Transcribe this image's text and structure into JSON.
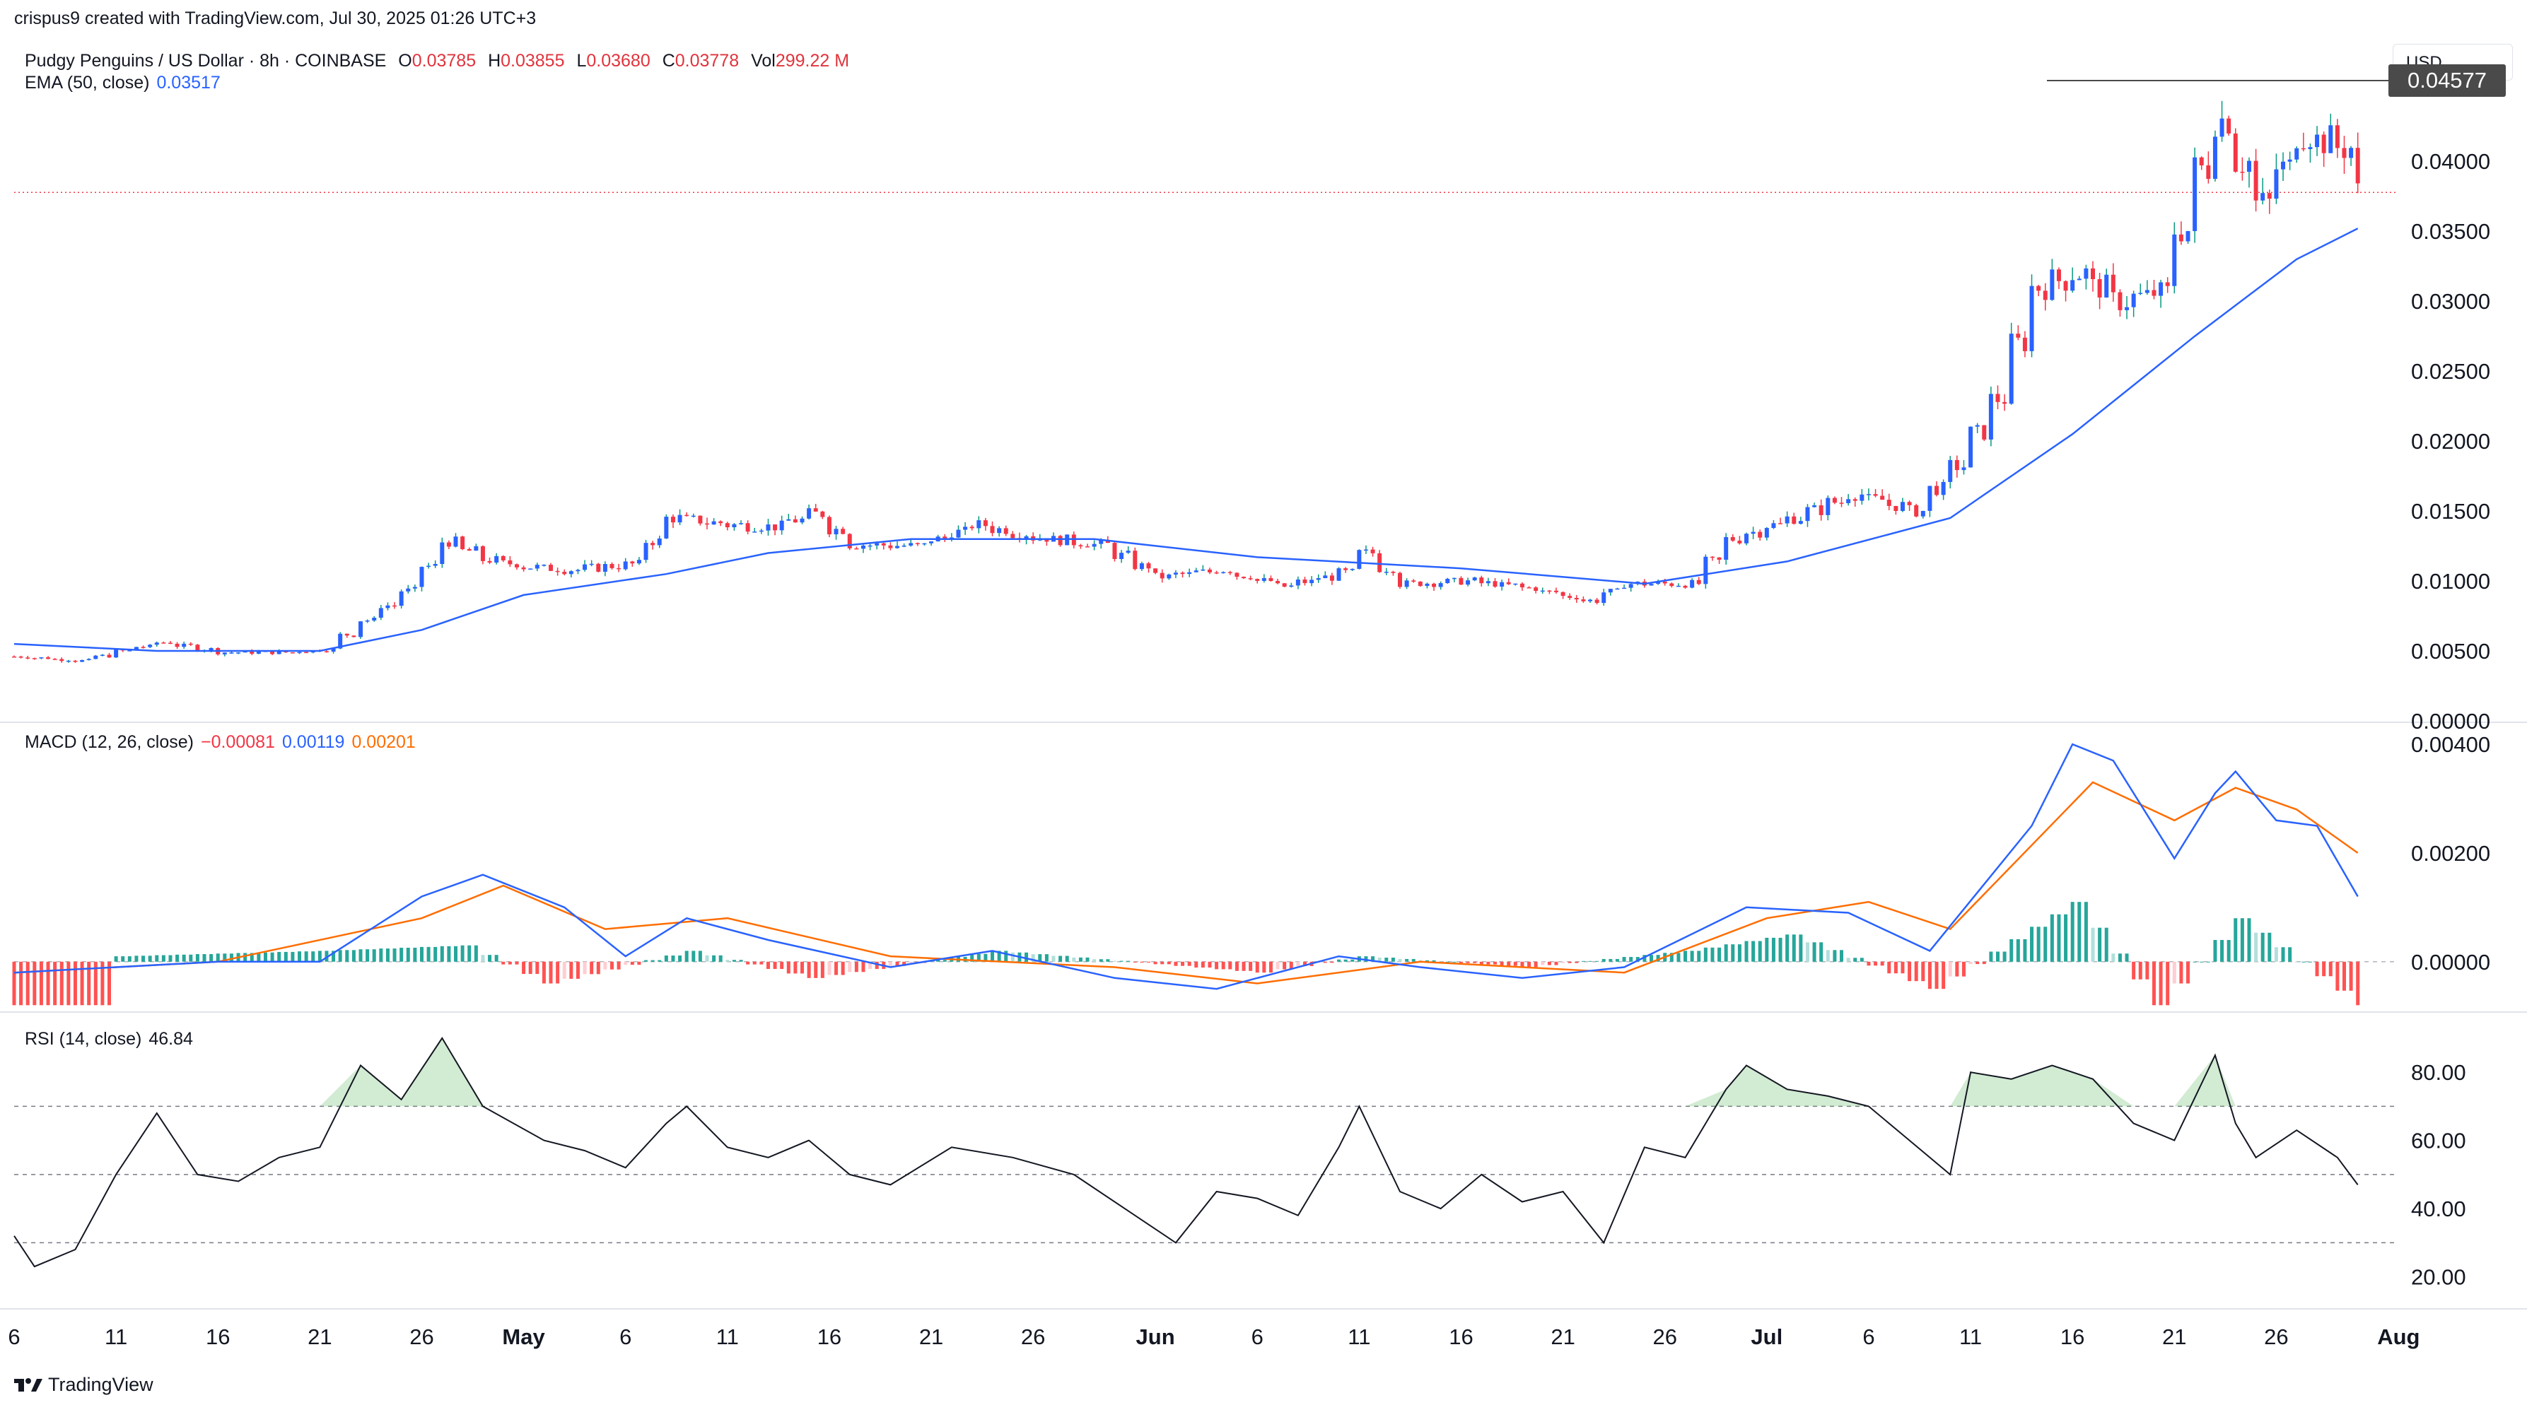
{
  "header": {
    "text": "crispus9 created with TradingView.com, Jul 30, 2025 01:26 UTC+3"
  },
  "symbol": {
    "name": "Pudgy Penguins / US Dollar · 8h · COINBASE",
    "open_key": "O",
    "open": "0.03785",
    "high_key": "H",
    "high": "0.03855",
    "low_key": "L",
    "low": "0.03680",
    "close_key": "C",
    "close": "0.03778",
    "vol_key": "Vol",
    "vol": "299.22 M"
  },
  "ema": {
    "label": "EMA (50, close)",
    "value": "0.03517"
  },
  "macd": {
    "label": "MACD (12, 26, close)",
    "hist": "−0.00081",
    "macd": "0.00119",
    "signal": "0.00201"
  },
  "rsi": {
    "label": "RSI (14, close)",
    "value": "46.84"
  },
  "currency": "USD",
  "resistance_label": "0.04577",
  "footer": {
    "brand": "TradingView"
  },
  "colors": {
    "up": "#089981",
    "up_body": "#2962ff",
    "down": "#f23645",
    "ema": "#2962ff",
    "macd": "#2962ff",
    "signal": "#ff6d00",
    "rsi": "#131722"
  },
  "chart_data": [
    {
      "type": "candlestick",
      "title": "Pudgy Penguins / US Dollar · 8h · COINBASE",
      "y_ticks": [
        "0.04000",
        "0.03500",
        "0.03000",
        "0.02500",
        "0.02000",
        "0.01500",
        "0.01000",
        "0.00500",
        "0.00000"
      ],
      "ylim": [
        0,
        0.0485
      ],
      "x_ticks": [
        "6",
        "11",
        "16",
        "21",
        "26",
        "May",
        "6",
        "11",
        "16",
        "21",
        "26",
        "Jun",
        "6",
        "11",
        "16",
        "21",
        "26",
        "Jul",
        "6",
        "11",
        "16",
        "21",
        "26",
        "Aug"
      ],
      "close_path": [
        [
          "2025-04-06",
          0.0046
        ],
        [
          "2025-04-09",
          0.0043
        ],
        [
          "2025-04-11",
          0.005
        ],
        [
          "2025-04-13",
          0.0056
        ],
        [
          "2025-04-16",
          0.0049
        ],
        [
          "2025-04-19",
          0.0049
        ],
        [
          "2025-04-21",
          0.0051
        ],
        [
          "2025-04-23",
          0.0072
        ],
        [
          "2025-04-25",
          0.0093
        ],
        [
          "2025-04-27",
          0.0128
        ],
        [
          "2025-04-29",
          0.0115
        ],
        [
          "2025-05-01",
          0.011
        ],
        [
          "2025-05-03",
          0.0108
        ],
        [
          "2025-05-06",
          0.0112
        ],
        [
          "2025-05-08",
          0.0145
        ],
        [
          "2025-05-11",
          0.014
        ],
        [
          "2025-05-13",
          0.0139
        ],
        [
          "2025-05-15",
          0.0148
        ],
        [
          "2025-05-17",
          0.0126
        ],
        [
          "2025-05-20",
          0.0125
        ],
        [
          "2025-05-23",
          0.014
        ],
        [
          "2025-05-26",
          0.0131
        ],
        [
          "2025-05-29",
          0.0126
        ],
        [
          "2025-06-01",
          0.0103
        ],
        [
          "2025-06-04",
          0.0108
        ],
        [
          "2025-06-07",
          0.0096
        ],
        [
          "2025-06-10",
          0.0106
        ],
        [
          "2025-06-11",
          0.012
        ],
        [
          "2025-06-13",
          0.0098
        ],
        [
          "2025-06-16",
          0.01
        ],
        [
          "2025-06-19",
          0.0095
        ],
        [
          "2025-06-22",
          0.0086
        ],
        [
          "2025-06-24",
          0.0098
        ],
        [
          "2025-06-27",
          0.0098
        ],
        [
          "2025-06-29",
          0.013
        ],
        [
          "2025-07-02",
          0.0145
        ],
        [
          "2025-07-05",
          0.0162
        ],
        [
          "2025-07-08",
          0.015
        ],
        [
          "2025-07-10",
          0.0182
        ],
        [
          "2025-07-12",
          0.023
        ],
        [
          "2025-07-14",
          0.031
        ],
        [
          "2025-07-16",
          0.032
        ],
        [
          "2025-07-18",
          0.03
        ],
        [
          "2025-07-20",
          0.0306
        ],
        [
          "2025-07-22",
          0.0395
        ],
        [
          "2025-07-23",
          0.043
        ],
        [
          "2025-07-25",
          0.037
        ],
        [
          "2025-07-27",
          0.042
        ],
        [
          "2025-07-29",
          0.041
        ],
        [
          "2025-07-30",
          0.0378
        ]
      ],
      "ema50": [
        [
          "2025-04-06",
          0.0055
        ],
        [
          "2025-04-13",
          0.005
        ],
        [
          "2025-04-21",
          0.005
        ],
        [
          "2025-04-26",
          0.0065
        ],
        [
          "2025-05-01",
          0.009
        ],
        [
          "2025-05-08",
          0.0105
        ],
        [
          "2025-05-13",
          0.012
        ],
        [
          "2025-05-20",
          0.013
        ],
        [
          "2025-05-29",
          0.013
        ],
        [
          "2025-06-06",
          0.0117
        ],
        [
          "2025-06-16",
          0.0109
        ],
        [
          "2025-06-25",
          0.0098
        ],
        [
          "2025-07-02",
          0.0114
        ],
        [
          "2025-07-10",
          0.0145
        ],
        [
          "2025-07-16",
          0.0205
        ],
        [
          "2025-07-22",
          0.0275
        ],
        [
          "2025-07-27",
          0.033
        ],
        [
          "2025-07-30",
          0.0352
        ]
      ],
      "resistance": 0.04577,
      "last_close": 0.03778
    },
    {
      "type": "line",
      "title": "MACD (12, 26, close)",
      "y_ticks": [
        "0.00400",
        "0.00200",
        "0.00000"
      ],
      "ylim": [
        -0.0009,
        0.0043
      ],
      "series": [
        {
          "name": "MACD",
          "points": [
            [
              "2025-04-06",
              -0.0002
            ],
            [
              "2025-04-11",
              -0.0001
            ],
            [
              "2025-04-16",
              0.0
            ],
            [
              "2025-04-21",
              0.0
            ],
            [
              "2025-04-26",
              0.0012
            ],
            [
              "2025-04-29",
              0.0016
            ],
            [
              "2025-05-03",
              0.001
            ],
            [
              "2025-05-06",
              0.0001
            ],
            [
              "2025-05-09",
              0.0008
            ],
            [
              "2025-05-13",
              0.0004
            ],
            [
              "2025-05-19",
              -0.0001
            ],
            [
              "2025-05-24",
              0.0002
            ],
            [
              "2025-05-30",
              -0.0003
            ],
            [
              "2025-06-04",
              -0.0005
            ],
            [
              "2025-06-10",
              0.0001
            ],
            [
              "2025-06-14",
              -0.0001
            ],
            [
              "2025-06-19",
              -0.0003
            ],
            [
              "2025-06-24",
              -0.0001
            ],
            [
              "2025-06-30",
              0.001
            ],
            [
              "2025-07-05",
              0.0009
            ],
            [
              "2025-07-09",
              0.0002
            ],
            [
              "2025-07-14",
              0.0025
            ],
            [
              "2025-07-16",
              0.004
            ],
            [
              "2025-07-18",
              0.0037
            ],
            [
              "2025-07-21",
              0.0019
            ],
            [
              "2025-07-23",
              0.0031
            ],
            [
              "2025-07-24",
              0.0035
            ],
            [
              "2025-07-26",
              0.0026
            ],
            [
              "2025-07-28",
              0.0025
            ],
            [
              "2025-07-30",
              0.0012
            ]
          ]
        },
        {
          "name": "Signal",
          "points": [
            [
              "2025-04-06",
              -0.0002
            ],
            [
              "2025-04-16",
              0.0
            ],
            [
              "2025-04-26",
              0.0008
            ],
            [
              "2025-04-30",
              0.0014
            ],
            [
              "2025-05-05",
              0.0006
            ],
            [
              "2025-05-11",
              0.0008
            ],
            [
              "2025-05-19",
              0.0001
            ],
            [
              "2025-05-30",
              -0.0001
            ],
            [
              "2025-06-06",
              -0.0004
            ],
            [
              "2025-06-14",
              0.0
            ],
            [
              "2025-06-24",
              -0.0002
            ],
            [
              "2025-07-01",
              0.0008
            ],
            [
              "2025-07-06",
              0.0011
            ],
            [
              "2025-07-10",
              0.0006
            ],
            [
              "2025-07-17",
              0.0033
            ],
            [
              "2025-07-21",
              0.0026
            ],
            [
              "2025-07-24",
              0.0032
            ],
            [
              "2025-07-27",
              0.0028
            ],
            [
              "2025-07-30",
              0.002
            ]
          ]
        }
      ],
      "histogram": [
        [
          "2025-04-11",
          0.0001
        ],
        [
          "2025-04-21",
          0.0002
        ],
        [
          "2025-04-28",
          0.0003
        ],
        [
          "2025-05-02",
          -0.0004
        ],
        [
          "2025-05-09",
          0.0002
        ],
        [
          "2025-05-15",
          -0.0003
        ],
        [
          "2025-05-24",
          0.0002
        ],
        [
          "2025-06-06",
          -0.0002
        ],
        [
          "2025-06-11",
          0.0001
        ],
        [
          "2025-06-19",
          -0.0001
        ],
        [
          "2025-06-27",
          0.0002
        ],
        [
          "2025-07-02",
          0.0005
        ],
        [
          "2025-07-09",
          -0.0005
        ],
        [
          "2025-07-16",
          0.0011
        ],
        [
          "2025-07-20",
          -0.0008
        ],
        [
          "2025-07-24",
          0.0008
        ],
        [
          "2025-07-30",
          -0.0008
        ]
      ]
    },
    {
      "type": "line",
      "title": "RSI (14, close)",
      "y_ticks": [
        "80.00",
        "60.00",
        "40.00",
        "20.00"
      ],
      "ylim": [
        11,
        96
      ],
      "bands": [
        70,
        50,
        30
      ],
      "series": [
        {
          "name": "RSI",
          "points": [
            [
              "2025-04-06",
              32
            ],
            [
              "2025-04-07",
              23
            ],
            [
              "2025-04-09",
              28
            ],
            [
              "2025-04-11",
              50
            ],
            [
              "2025-04-13",
              68
            ],
            [
              "2025-04-15",
              50
            ],
            [
              "2025-04-17",
              48
            ],
            [
              "2025-04-19",
              55
            ],
            [
              "2025-04-21",
              58
            ],
            [
              "2025-04-23",
              82
            ],
            [
              "2025-04-25",
              72
            ],
            [
              "2025-04-27",
              90
            ],
            [
              "2025-04-29",
              70
            ],
            [
              "2025-05-02",
              60
            ],
            [
              "2025-05-04",
              57
            ],
            [
              "2025-05-06",
              52
            ],
            [
              "2025-05-08",
              65
            ],
            [
              "2025-05-09",
              70
            ],
            [
              "2025-05-11",
              58
            ],
            [
              "2025-05-13",
              55
            ],
            [
              "2025-05-15",
              60
            ],
            [
              "2025-05-17",
              50
            ],
            [
              "2025-05-19",
              47
            ],
            [
              "2025-05-22",
              58
            ],
            [
              "2025-05-25",
              55
            ],
            [
              "2025-05-28",
              50
            ],
            [
              "2025-05-31",
              38
            ],
            [
              "2025-06-02",
              30
            ],
            [
              "2025-06-04",
              45
            ],
            [
              "2025-06-06",
              43
            ],
            [
              "2025-06-08",
              38
            ],
            [
              "2025-06-10",
              58
            ],
            [
              "2025-06-11",
              70
            ],
            [
              "2025-06-13",
              45
            ],
            [
              "2025-06-15",
              40
            ],
            [
              "2025-06-17",
              50
            ],
            [
              "2025-06-19",
              42
            ],
            [
              "2025-06-21",
              45
            ],
            [
              "2025-06-23",
              30
            ],
            [
              "2025-06-25",
              58
            ],
            [
              "2025-06-27",
              55
            ],
            [
              "2025-06-29",
              75
            ],
            [
              "2025-06-30",
              82
            ],
            [
              "2025-07-02",
              75
            ],
            [
              "2025-07-04",
              73
            ],
            [
              "2025-07-06",
              70
            ],
            [
              "2025-07-08",
              60
            ],
            [
              "2025-07-10",
              50
            ],
            [
              "2025-07-11",
              80
            ],
            [
              "2025-07-13",
              78
            ],
            [
              "2025-07-15",
              82
            ],
            [
              "2025-07-17",
              78
            ],
            [
              "2025-07-19",
              65
            ],
            [
              "2025-07-21",
              60
            ],
            [
              "2025-07-23",
              85
            ],
            [
              "2025-07-24",
              65
            ],
            [
              "2025-07-25",
              55
            ],
            [
              "2025-07-27",
              63
            ],
            [
              "2025-07-29",
              55
            ],
            [
              "2025-07-30",
              47
            ]
          ]
        }
      ]
    }
  ]
}
